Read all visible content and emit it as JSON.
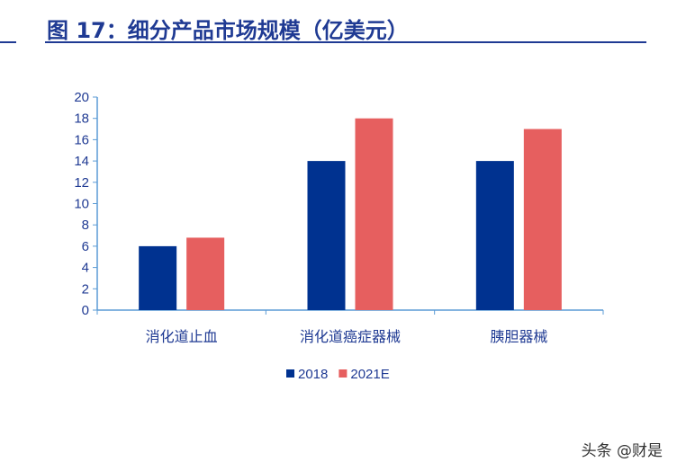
{
  "title": "图 17：细分产品市场规模（亿美元）",
  "watermark": "头条 @财是",
  "chart_data": {
    "type": "bar",
    "title": "图 17：细分产品市场规模（亿美元）",
    "categories": [
      "消化道止血",
      "消化道癌症器械",
      "胰胆器械"
    ],
    "series": [
      {
        "name": "2018",
        "values": [
          6,
          14,
          14
        ],
        "color": "#003290"
      },
      {
        "name": "2021E",
        "values": [
          6.8,
          18,
          17
        ],
        "color": "#e65f5f"
      }
    ],
    "ylim": [
      0,
      20
    ],
    "yticks": [
      "0",
      "2",
      "4",
      "6",
      "8",
      "10",
      "12",
      "14",
      "16",
      "18",
      "20"
    ],
    "grid": false,
    "legend": "bottom",
    "axis_color": "#5b9bd5",
    "tick_label_color": "#1f3a93"
  }
}
